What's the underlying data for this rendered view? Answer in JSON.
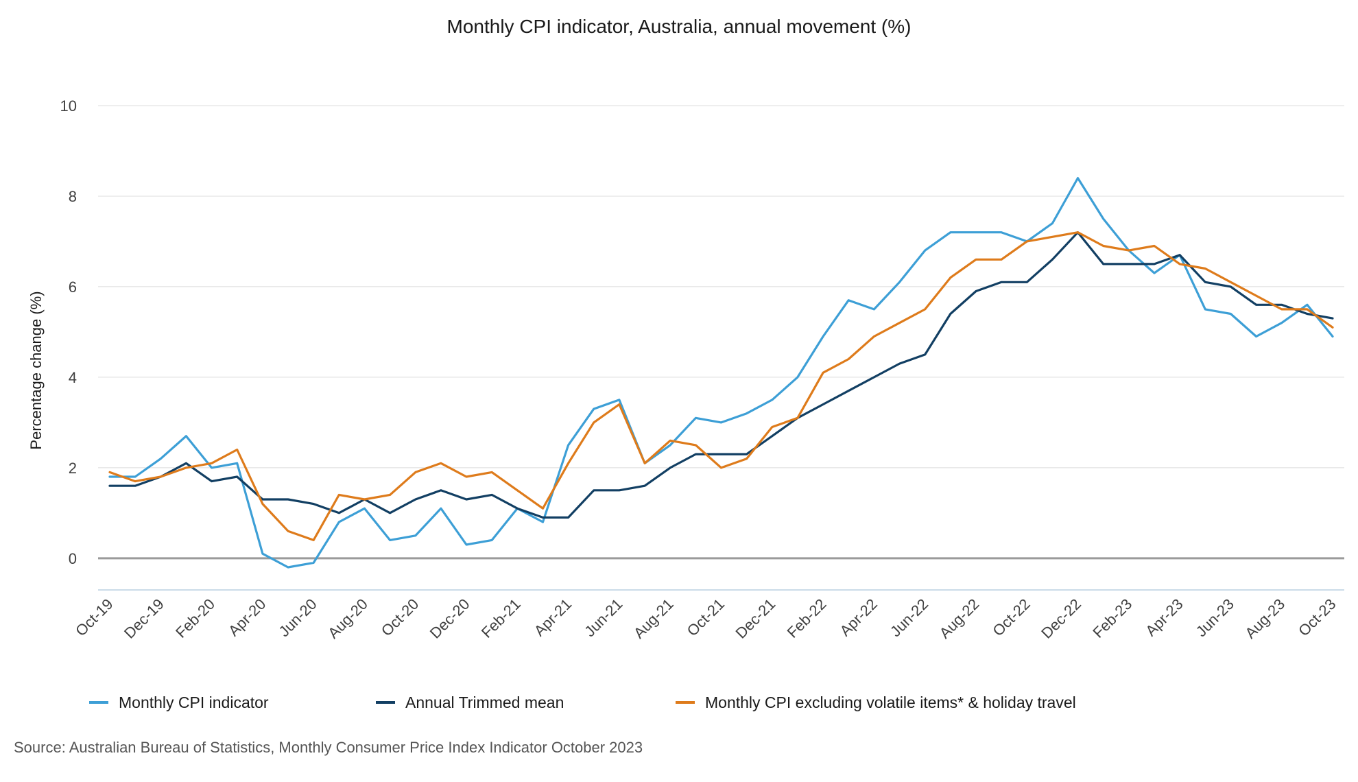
{
  "chart_data": {
    "type": "line",
    "title": "Monthly CPI indicator, Australia, annual movement (%)",
    "ylabel": "Percentage change (%)",
    "xlabel": "",
    "ylim": [
      -0.7,
      10
    ],
    "yticks": [
      0,
      2,
      4,
      6,
      8,
      10
    ],
    "grid": true,
    "legend_position": "bottom",
    "x": [
      "Oct-19",
      "Nov-19",
      "Dec-19",
      "Jan-20",
      "Feb-20",
      "Mar-20",
      "Apr-20",
      "May-20",
      "Jun-20",
      "Jul-20",
      "Aug-20",
      "Sep-20",
      "Oct-20",
      "Nov-20",
      "Dec-20",
      "Jan-21",
      "Feb-21",
      "Mar-21",
      "Apr-21",
      "May-21",
      "Jun-21",
      "Jul-21",
      "Aug-21",
      "Sep-21",
      "Oct-21",
      "Nov-21",
      "Dec-21",
      "Jan-22",
      "Feb-22",
      "Mar-22",
      "Apr-22",
      "May-22",
      "Jun-22",
      "Jul-22",
      "Aug-22",
      "Sep-22",
      "Oct-22",
      "Nov-22",
      "Dec-22",
      "Jan-23",
      "Feb-23",
      "Mar-23",
      "Apr-23",
      "May-23",
      "Jun-23",
      "Jul-23",
      "Aug-23",
      "Sep-23",
      "Oct-23"
    ],
    "x_tick_labels": [
      "Oct-19",
      "Dec-19",
      "Feb-20",
      "Apr-20",
      "Jun-20",
      "Aug-20",
      "Oct-20",
      "Dec-20",
      "Feb-21",
      "Apr-21",
      "Jun-21",
      "Aug-21",
      "Oct-21",
      "Dec-21",
      "Feb-22",
      "Apr-22",
      "Jun-22",
      "Aug-22",
      "Oct-22",
      "Dec-22",
      "Feb-23",
      "Apr-23",
      "Jun-23",
      "Aug-23",
      "Oct-23"
    ],
    "series": [
      {
        "name": "Monthly CPI indicator",
        "color": "#3d9fd6",
        "values": [
          1.8,
          1.8,
          2.2,
          2.7,
          2.0,
          2.1,
          0.1,
          -0.2,
          -0.1,
          0.8,
          1.1,
          0.4,
          0.5,
          1.1,
          0.3,
          0.4,
          1.1,
          0.8,
          2.5,
          3.3,
          3.5,
          2.1,
          2.5,
          3.1,
          3.0,
          3.2,
          3.5,
          4.0,
          4.9,
          5.7,
          5.5,
          6.1,
          6.8,
          7.2,
          7.2,
          7.2,
          7.0,
          7.4,
          8.4,
          7.5,
          6.8,
          6.3,
          6.7,
          5.5,
          5.4,
          4.9,
          5.2,
          5.6,
          4.9
        ]
      },
      {
        "name": "Annual Trimmed mean",
        "color": "#123f63",
        "values": [
          1.6,
          1.6,
          1.8,
          2.1,
          1.7,
          1.8,
          1.3,
          1.3,
          1.2,
          1.0,
          1.3,
          1.0,
          1.3,
          1.5,
          1.3,
          1.4,
          1.1,
          0.9,
          0.9,
          1.5,
          1.5,
          1.6,
          2.0,
          2.3,
          2.3,
          2.3,
          2.7,
          3.1,
          3.4,
          3.7,
          4.0,
          4.3,
          4.5,
          5.4,
          5.9,
          6.1,
          6.1,
          6.6,
          7.2,
          6.5,
          6.5,
          6.5,
          6.7,
          6.1,
          6.0,
          5.6,
          5.6,
          5.4,
          5.3
        ]
      },
      {
        "name": "Monthly CPI excluding volatile items* & holiday travel",
        "color": "#de7b1b",
        "values": [
          1.9,
          1.7,
          1.8,
          2.0,
          2.1,
          2.4,
          1.2,
          0.6,
          0.4,
          1.4,
          1.3,
          1.4,
          1.9,
          2.1,
          1.8,
          1.9,
          1.5,
          1.1,
          2.1,
          3.0,
          3.4,
          2.1,
          2.6,
          2.5,
          2.0,
          2.2,
          2.9,
          3.1,
          4.1,
          4.4,
          4.9,
          5.2,
          5.5,
          6.2,
          6.6,
          6.6,
          7.0,
          7.1,
          7.2,
          6.9,
          6.8,
          6.9,
          6.5,
          6.4,
          6.1,
          5.8,
          5.5,
          5.5,
          5.1
        ]
      }
    ]
  },
  "source": "Source: Australian Bureau of Statistics, Monthly Consumer Price Index Indicator October 2023"
}
